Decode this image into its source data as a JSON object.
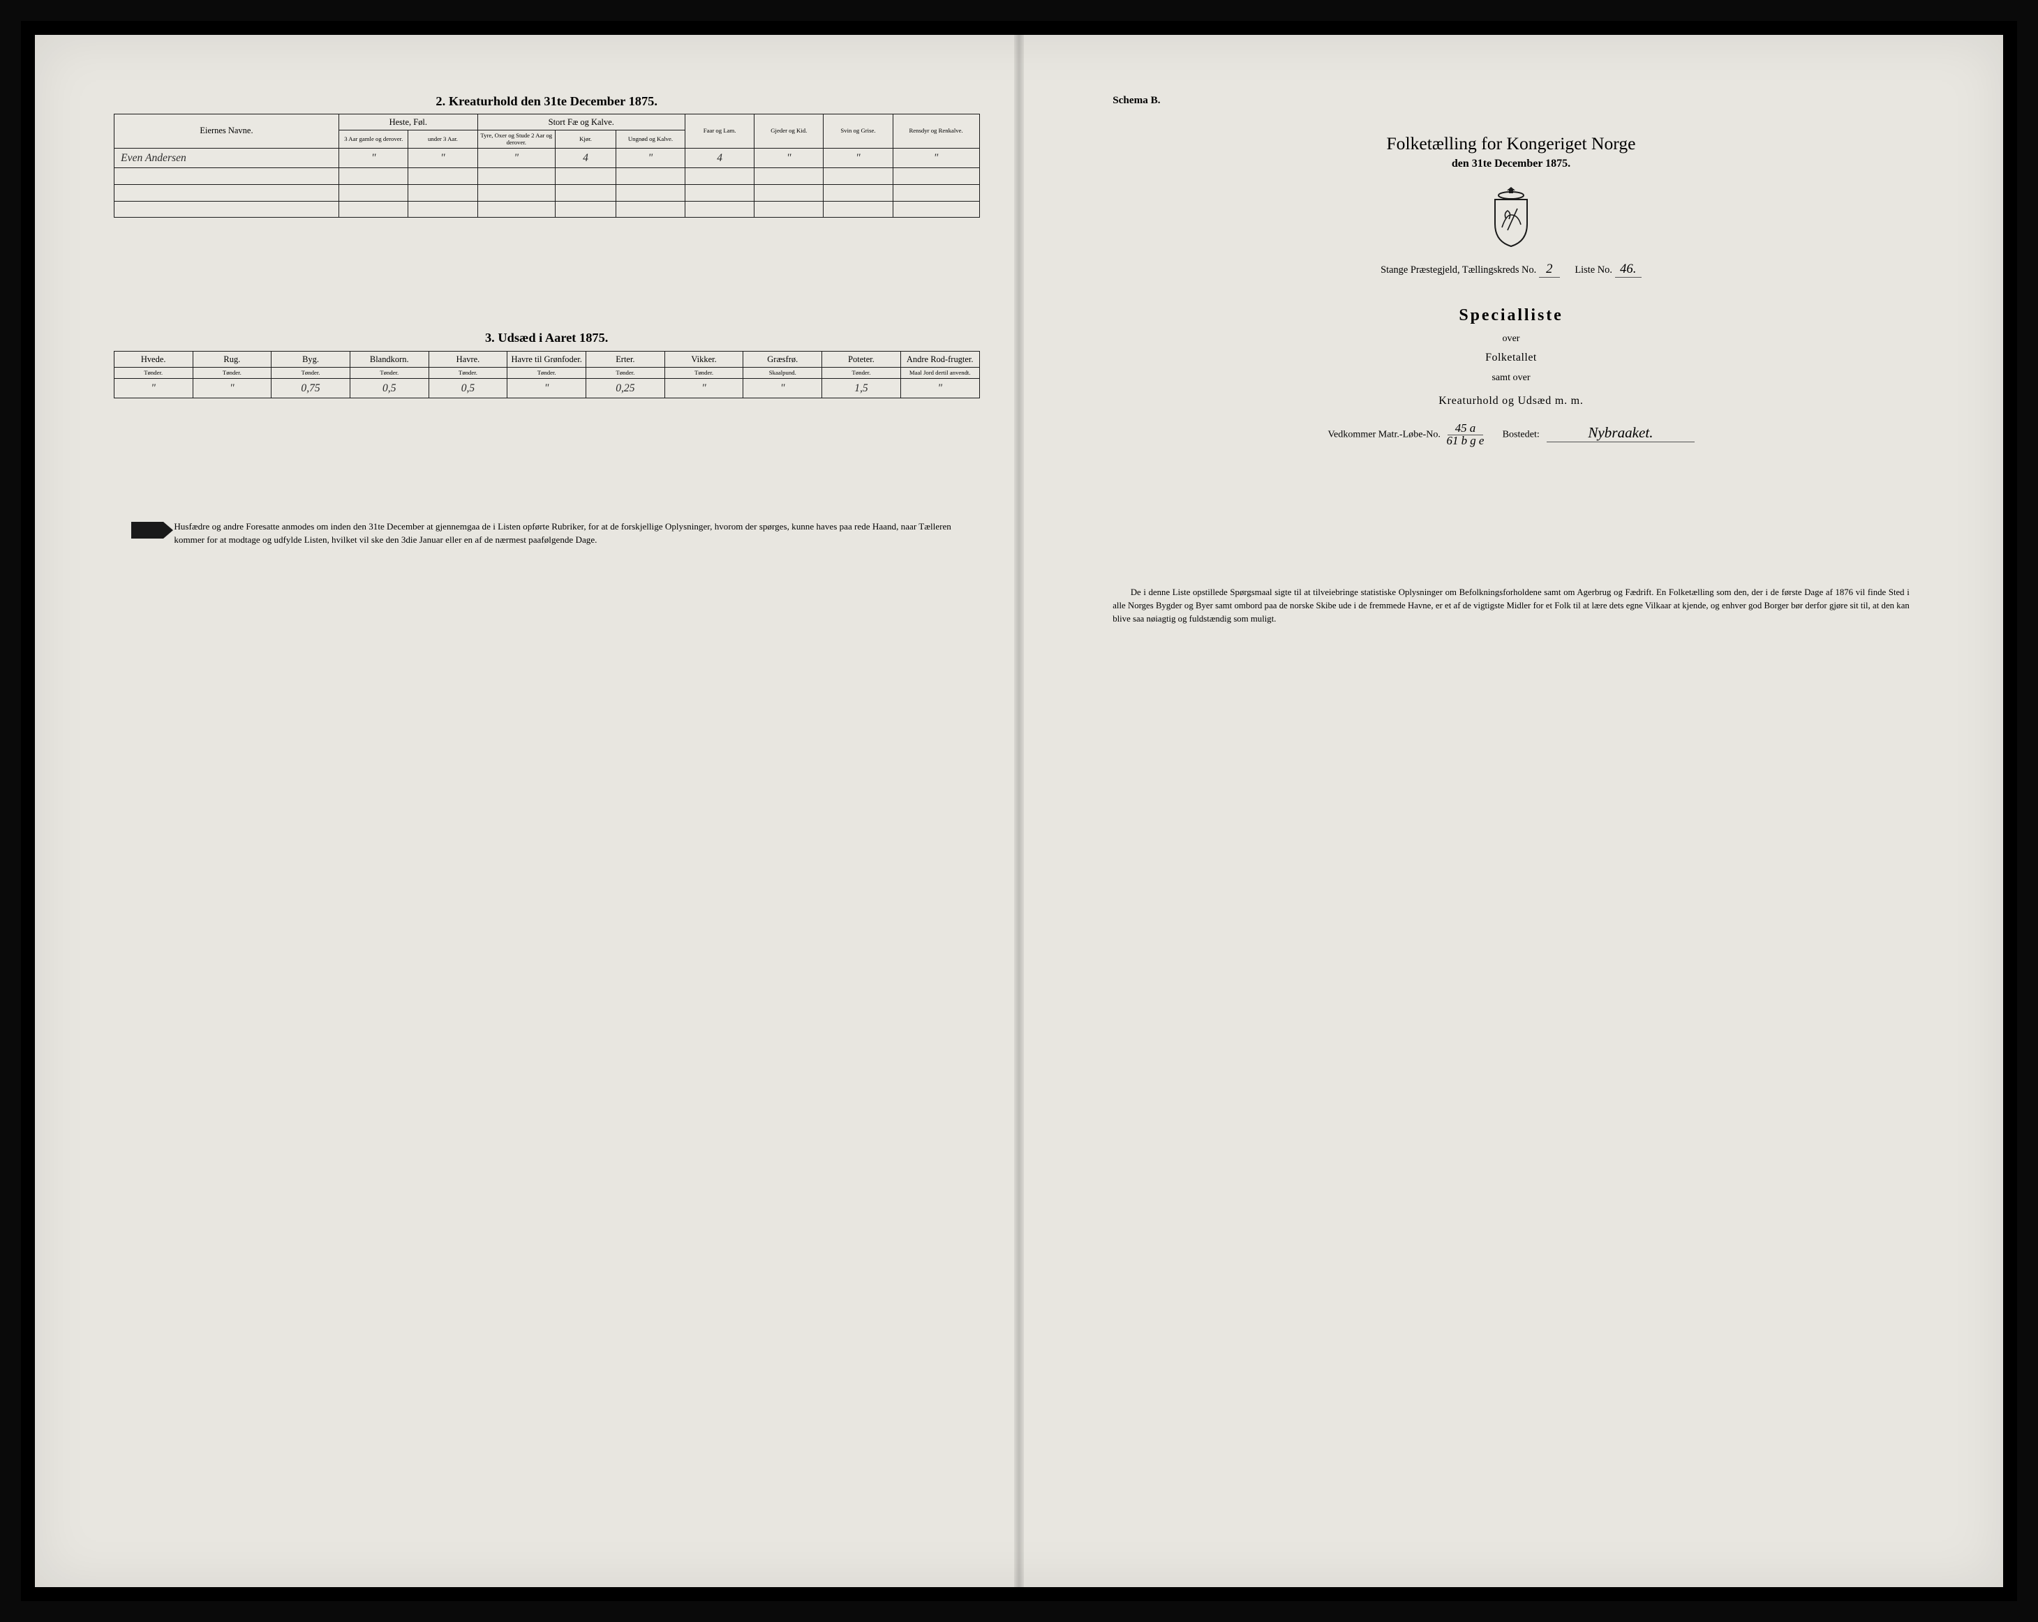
{
  "colors": {
    "paper": "#e8e6e0",
    "ink": "#1a1a1a",
    "frame": "#0a0a0a",
    "hand": "#2b2b2b"
  },
  "left": {
    "section2": {
      "title": "2.  Kreaturhold den 31te December 1875.",
      "col_owner": "Eiernes Navne.",
      "group_heste": "Heste, Føl.",
      "group_fae": "Stort Fæ og Kalve.",
      "col_faar": "Faar og Lam.",
      "col_gjeder": "Gjeder og Kid.",
      "col_svin": "Svin og Grise.",
      "col_ren": "Rensdyr og Renkalve.",
      "sub_h1": "3 Aar gamle og derover.",
      "sub_h2": "under 3 Aar.",
      "sub_f1": "Tyre, Oxer og Stude 2 Aar og derover.",
      "sub_f2": "Kjør.",
      "sub_f3": "Ungnød og Kalve.",
      "row": {
        "name": "Even Andersen",
        "h1": "\"",
        "h2": "\"",
        "f1": "\"",
        "f2": "4",
        "f3": "\"",
        "faar": "4",
        "gjeder": "\"",
        "svin": "\"",
        "ren": "\""
      }
    },
    "section3": {
      "title": "3.  Udsæd i Aaret 1875.",
      "cols": [
        "Hvede.",
        "Rug.",
        "Byg.",
        "Blandkorn.",
        "Havre.",
        "Havre til Grønfoder.",
        "Erter.",
        "Vikker.",
        "Græsfrø.",
        "Poteter.",
        "Andre Rod-frugter."
      ],
      "sub": [
        "Tønder.",
        "Tønder.",
        "Tønder.",
        "Tønder.",
        "Tønder.",
        "Tønder.",
        "Tønder.",
        "Tønder.",
        "Skaalpund.",
        "Tønder.",
        "Maal Jord dertil anvendt."
      ],
      "row": [
        "\"",
        "\"",
        "0,75",
        "0,5",
        "0,5",
        "\"",
        "0,25",
        "\"",
        "\"",
        "1,5",
        "\""
      ]
    },
    "notice": "Husfædre og andre Foresatte anmodes om inden den 31te December at gjennemgaa de i Listen opførte Rubriker, for at de forskjellige Oplysninger, hvorom der spørges, kunne haves paa rede Haand, naar Tælleren kommer for at modtage og udfylde Listen, hvilket vil ske den 3die Januar eller en af de nærmest paafølgende Dage."
  },
  "right": {
    "schema": "Schema B.",
    "main_title": "Folketælling for Kongeriget Norge",
    "main_sub": "den 31te December 1875.",
    "meta_prefix": "Stange Præstegjeld,  Tællingskreds No.",
    "meta_kreds": "2",
    "meta_liste_label": "Liste No.",
    "meta_liste": "46.",
    "special": "Specialliste",
    "over": "over",
    "folketallet": "Folketallet",
    "samt_over": "samt over",
    "kreatur": "Kreaturhold og Udsæd m. m.",
    "matr_label": "Vedkommer Matr.-Løbe-No.",
    "matr_top": "45 a",
    "matr_bot": "61 b g e",
    "bosted_label": "Bostedet:",
    "bosted": "Nybraaket.",
    "notice": "De i denne Liste opstillede Spørgsmaal sigte til at tilveiebringe statistiske Oplysninger om Befolkningsforholdene samt om Agerbrug og Fædrift.  En Folketælling som den, der i de første Dage af 1876 vil finde Sted i alle Norges Bygder og Byer samt ombord paa de norske Skibe ude i de fremmede Havne, er et af de vigtigste Midler for et Folk til at lære dets egne Vilkaar at kjende, og enhver god Borger bør derfor gjøre sit til, at den kan blive saa nøiagtig og fuldstændig som muligt."
  }
}
